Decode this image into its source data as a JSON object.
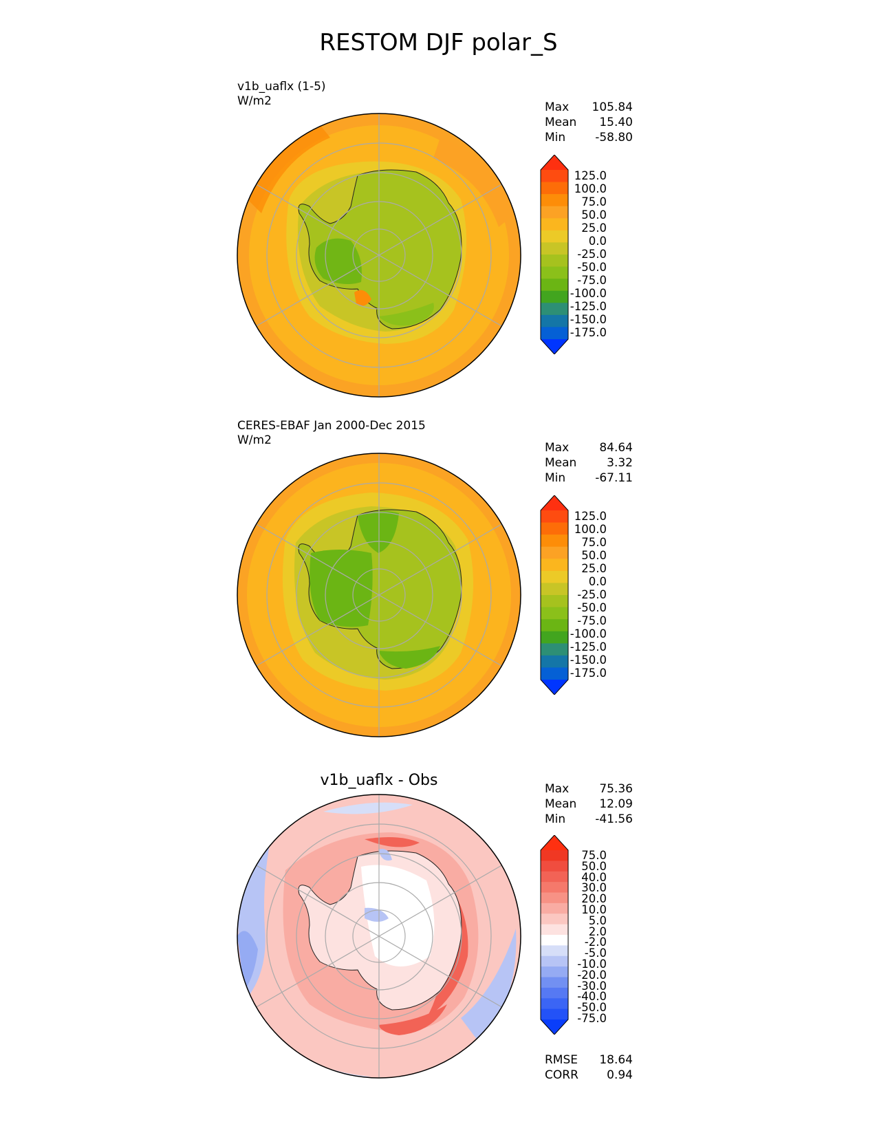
{
  "figure": {
    "title": "RESTOM DJF polar_S"
  },
  "colors": {
    "abs_scale": [
      "#0035ff",
      "#0560d5",
      "#1476a7",
      "#2d8f75",
      "#42a51f",
      "#6bb514",
      "#8bc01a",
      "#a6c21e",
      "#c8c526",
      "#ecca27",
      "#fbb61e",
      "#fca224",
      "#fd8d08",
      "#fd6d08",
      "#fe4c10",
      "#fe3010"
    ],
    "diff_scale": [
      "#0a3efa",
      "#2352f7",
      "#3b65f5",
      "#5679f3",
      "#7290f2",
      "#95abf3",
      "#b7c4f5",
      "#d6def8",
      "#ffffff",
      "#fde2e0",
      "#fbc7c1",
      "#f9aca3",
      "#f79285",
      "#f5796b",
      "#f26356",
      "#f04d3f",
      "#f03823",
      "#fe3010"
    ]
  },
  "chart_data": [
    {
      "type": "heatmap",
      "projection": "south polar stereographic",
      "title": "v1b_uaflx (1-5)",
      "units": "W/m2",
      "stats": [
        {
          "label": "Max",
          "value": "105.84"
        },
        {
          "label": "Mean",
          "value": "15.40"
        },
        {
          "label": "Min",
          "value": "-58.80"
        }
      ],
      "colorbar_ticks": [
        "125.0",
        "100.0",
        "75.0",
        "50.0",
        "25.0",
        "0.0",
        "-25.0",
        "-50.0",
        "-75.0",
        "-100.0",
        "-125.0",
        "-150.0",
        "-175.0"
      ]
    },
    {
      "type": "heatmap",
      "projection": "south polar stereographic",
      "title": "CERES-EBAF Jan 2000-Dec 2015",
      "units": "W/m2",
      "stats": [
        {
          "label": "Max",
          "value": "84.64"
        },
        {
          "label": "Mean",
          "value": "3.32"
        },
        {
          "label": "Min",
          "value": "-67.11"
        }
      ],
      "colorbar_ticks": [
        "125.0",
        "100.0",
        "75.0",
        "50.0",
        "25.0",
        "0.0",
        "-25.0",
        "-50.0",
        "-75.0",
        "-100.0",
        "-125.0",
        "-150.0",
        "-175.0"
      ]
    },
    {
      "type": "heatmap",
      "projection": "south polar stereographic",
      "title": "v1b_uaflx - Obs",
      "stats": [
        {
          "label": "Max",
          "value": "75.36"
        },
        {
          "label": "Mean",
          "value": "12.09"
        },
        {
          "label": "Min",
          "value": "-41.56"
        }
      ],
      "colorbar_ticks": [
        "75.0",
        "50.0",
        "40.0",
        "30.0",
        "20.0",
        "10.0",
        "5.0",
        "2.0",
        "-2.0",
        "-5.0",
        "-10.0",
        "-20.0",
        "-30.0",
        "-40.0",
        "-50.0",
        "-75.0"
      ],
      "metrics": [
        {
          "label": "RMSE",
          "value": "18.64"
        },
        {
          "label": "CORR",
          "value": "0.94"
        }
      ]
    }
  ]
}
